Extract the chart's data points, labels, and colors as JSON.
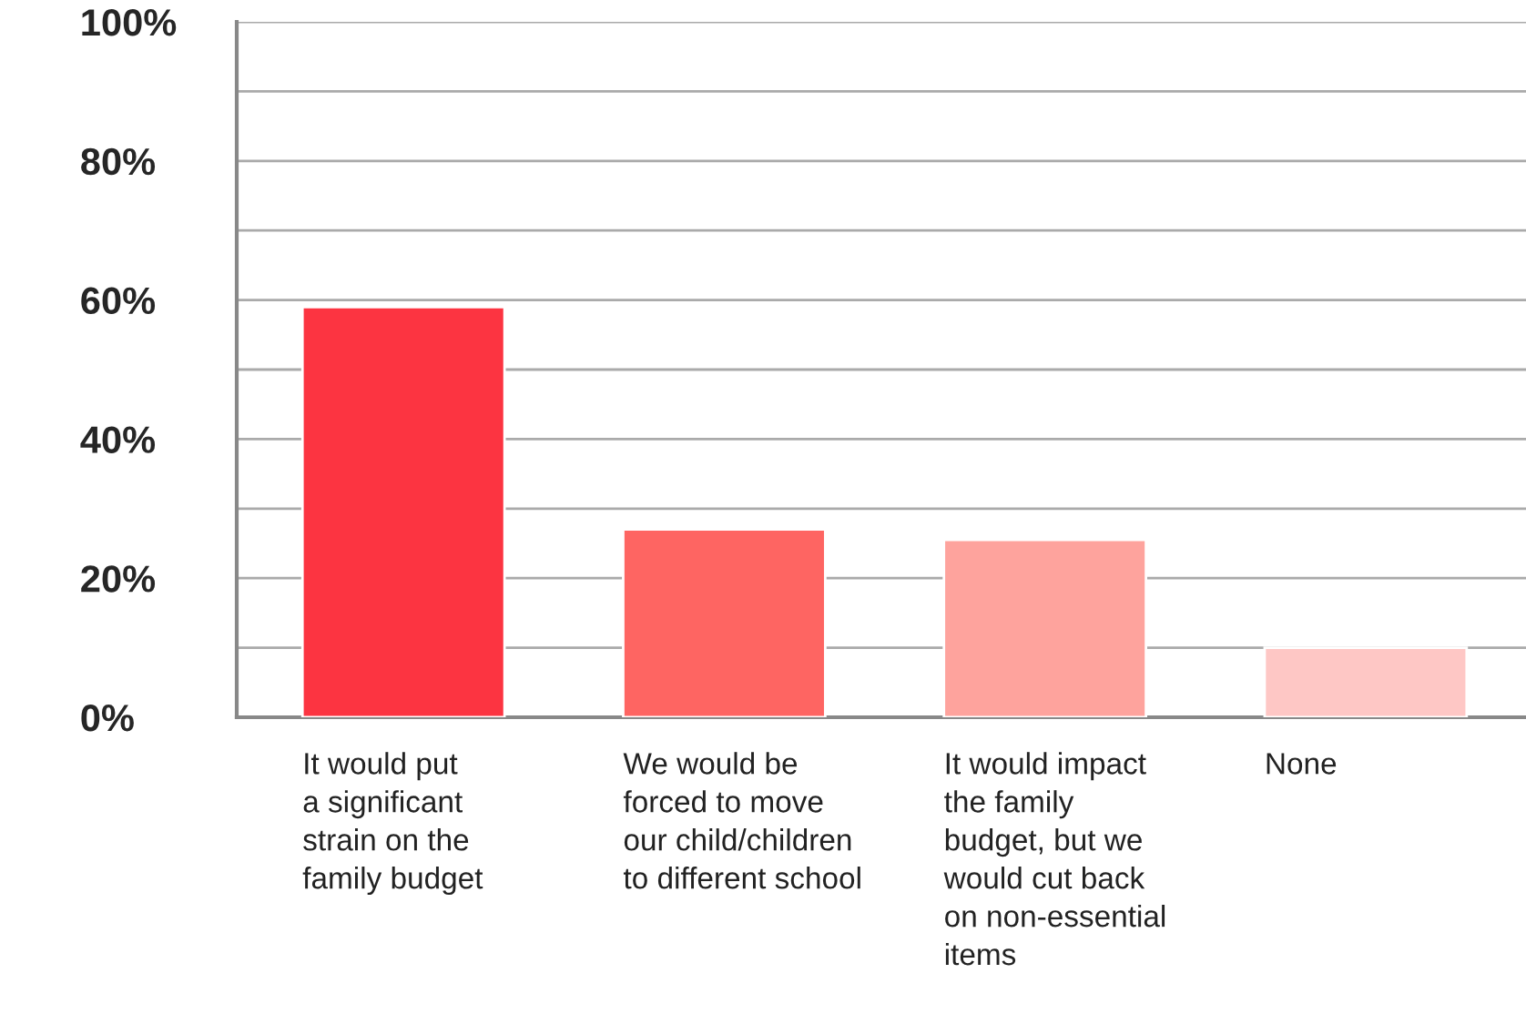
{
  "chart_data": {
    "type": "bar",
    "categories": [
      "It would put\na significant\nstrain on the\nfamily budget",
      "We would be\nforced to move\nour child/children\nto different school",
      "It would impact\nthe family\nbudget, but we\nwould cut back\non non-essential\nitems",
      "None"
    ],
    "values": [
      59,
      27,
      25.5,
      10
    ],
    "colors": [
      "#fc3441",
      "#fe6562",
      "#fea39d",
      "#fec7c5"
    ],
    "ylim": [
      0,
      100
    ],
    "yticks": [
      {
        "value": 0,
        "label": "0%"
      },
      {
        "value": 10,
        "label": null
      },
      {
        "value": 20,
        "label": "20%"
      },
      {
        "value": 30,
        "label": null
      },
      {
        "value": 40,
        "label": "40%"
      },
      {
        "value": 50,
        "label": null
      },
      {
        "value": 60,
        "label": "60%"
      },
      {
        "value": 70,
        "label": null
      },
      {
        "value": 80,
        "label": "80%"
      },
      {
        "value": 90,
        "label": null
      },
      {
        "value": 100,
        "label": "100%"
      }
    ],
    "grid": "y",
    "legend": false
  }
}
